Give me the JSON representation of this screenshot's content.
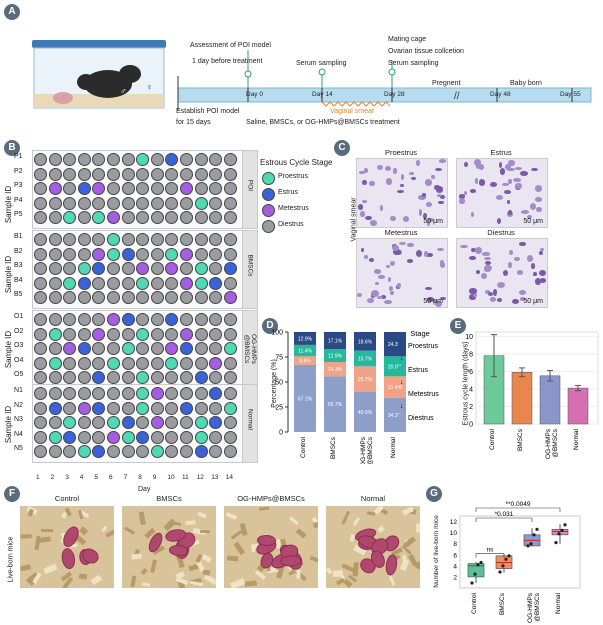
{
  "panelA": {
    "label": "A",
    "assessment": "Assessment of POI model",
    "assessment2": "1 day before treatment",
    "serum1": "Serum sampling",
    "mating": "Mating cage",
    "ovarian": "Ovarian tissue collcetion",
    "serum2": "Serum sampling",
    "pregnent": "Pregnent",
    "baby": "Baby born",
    "establish": "Establish POI model",
    "establish2": "for 15 days",
    "treatment": "Saline, BMSCs, or OG-HMPs@BMSCs treatment",
    "vaginal": "Vaginal smear",
    "day0": "Day 0",
    "day14": "Day 14",
    "day28": "Day 28",
    "day48": "Day 48",
    "day55": "Day 55"
  },
  "panelB": {
    "label": "B",
    "legendTitle": "Estrous Cycle Stage",
    "legend": [
      "Proestrus",
      "Estrus",
      "Metestrus",
      "Diestrus"
    ],
    "colors": {
      "P": "#4fd9b5",
      "E": "#3b63d9",
      "M": "#a55ee3",
      "D": "#9a9ca2"
    },
    "ylabel": "Sample ID",
    "xlabel": "Day",
    "days": [
      "1",
      "2",
      "3",
      "4",
      "5",
      "6",
      "7",
      "8",
      "9",
      "10",
      "11",
      "12",
      "13",
      "14"
    ],
    "groups": [
      {
        "name": "POI",
        "rows": [
          {
            "id": "P1",
            "seq": "DDDDDDDPDEDDDD"
          },
          {
            "id": "P2",
            "seq": "DDDDDDDDDDDDDD"
          },
          {
            "id": "P3",
            "seq": "DMDEMDDDDDMDDD"
          },
          {
            "id": "P4",
            "seq": "DDDDDDDDDDDPDD"
          },
          {
            "id": "P5",
            "seq": "DDPDPMDDDDDDDD"
          }
        ]
      },
      {
        "name": "BMSCs",
        "rows": [
          {
            "id": "B1",
            "seq": "DDDDDPDDDDDDDD"
          },
          {
            "id": "B2",
            "seq": "DDDDMPEDDPMDDD"
          },
          {
            "id": "B3",
            "seq": "DDDPEDDMDMDPDE"
          },
          {
            "id": "B4",
            "seq": "DDPEDDDPDDMPED"
          },
          {
            "id": "B5",
            "seq": "DDDDDDDDDDDDDM"
          }
        ]
      },
      {
        "name": "OG-HMPs\n@BMSCs",
        "rows": [
          {
            "id": "O1",
            "seq": "DDDDDMEDDEDDDD"
          },
          {
            "id": "O2",
            "seq": "DPDDMDDPDDMDDD"
          },
          {
            "id": "O3",
            "seq": "DDMEDDPDDMEDDP"
          },
          {
            "id": "O4",
            "seq": "DPDDDPDDDPDDMD"
          },
          {
            "id": "O5",
            "seq": "DDDDEDDPDDDEDD"
          }
        ]
      },
      {
        "name": "Normal",
        "rows": [
          {
            "id": "N1",
            "seq": "DDDDDDDPMDDDED"
          },
          {
            "id": "N2",
            "seq": "DEDMEDDPDDEDDP"
          },
          {
            "id": "N3",
            "seq": "DDPDDPEDMDDPED"
          },
          {
            "id": "N4",
            "seq": "DPEDDMPEDDDPDD"
          },
          {
            "id": "N5",
            "seq": "DDDPEDDDPDDEDD"
          }
        ]
      }
    ]
  },
  "panelC": {
    "label": "C",
    "side": "Vaginal smear",
    "titles": [
      "Proestrus",
      "Estrus",
      "Metestrus",
      "Diestrus"
    ],
    "scale": "50 μm"
  },
  "panelD": {
    "label": "D",
    "ylabel": "Percentage (%)",
    "stageTitle": "Stage",
    "yticks": [
      "0",
      "25",
      "50",
      "75",
      "100"
    ],
    "chart_data": {
      "type": "bar",
      "categories": [
        "Control",
        "BMSCs",
        "OG-HMPs\n@BMSCs",
        "Normal"
      ],
      "series": [
        {
          "name": "Diestrus",
          "values": [
            67.1,
            55.7,
            40.0,
            34.3
          ],
          "labels": [
            "67.1%",
            "55.7%",
            "40.0%",
            "34.3%"
          ],
          "color": "#8d9ec8"
        },
        {
          "name": "Metestrus",
          "values": [
            8.6,
            14.3,
            25.7,
            21.4
          ],
          "labels": [
            "8.6%",
            "14.3%",
            "25.7%",
            "21.4%"
          ],
          "color": "#f0a386"
        },
        {
          "name": "Estrus",
          "values": [
            11.4,
            12.9,
            15.7,
            20.0
          ],
          "labels": [
            "11.4%",
            "12.9%",
            "15.7%",
            "20.0%"
          ],
          "color": "#26b89c"
        },
        {
          "name": "Proestrus",
          "values": [
            12.9,
            17.1,
            18.6,
            24.3
          ],
          "labels": [
            "12.9%",
            "17.1%",
            "18.6%",
            "24.3%"
          ],
          "color": "#2a4a86"
        }
      ],
      "ylim": [
        0,
        100
      ]
    }
  },
  "panelE": {
    "label": "E",
    "ylabel": "Estrous cycle length (days)",
    "yticks": [
      "0",
      "2",
      "4",
      "6",
      "8",
      "10"
    ],
    "chart_data": {
      "type": "bar",
      "categories": [
        "Control",
        "BMSCs",
        "OG-HMPs\n@BMSCs",
        "Normal"
      ],
      "values": [
        7.8,
        5.9,
        5.5,
        4.1
      ],
      "err": [
        2.4,
        0.5,
        0.6,
        0.3
      ],
      "colors": [
        "#6bc99a",
        "#e8864e",
        "#8a96c9",
        "#d66fb1"
      ],
      "ylim": [
        0,
        10.5
      ]
    }
  },
  "panelF": {
    "label": "F",
    "side": "Live-born mice",
    "titles": [
      "Control",
      "BMSCs",
      "OG-HMPs@BMSCs",
      "Normal"
    ]
  },
  "panelG": {
    "label": "G",
    "ylabel": "Number of live-born mice",
    "yticks": [
      "2",
      "4",
      "6",
      "8",
      "10",
      "12"
    ],
    "sig1": "**0.0049",
    "sig2": "*0.031",
    "sig3": "ns",
    "chart_data": {
      "type": "box",
      "categories": [
        "Control",
        "BMSCs",
        "OG-HMPs\n@BMSCs",
        "Normal"
      ],
      "boxes": [
        {
          "q1": 2.0,
          "med": 4.0,
          "q3": 4.4,
          "lo": 0.9,
          "hi": 4.7,
          "pts": [
            0.9,
            2.5,
            4.2,
            4.6
          ]
        },
        {
          "q1": 3.5,
          "med": 4.6,
          "q3": 5.8,
          "lo": 2.8,
          "hi": 6.1,
          "pts": [
            2.9,
            4.0,
            5.2,
            5.8
          ]
        },
        {
          "q1": 7.6,
          "med": 8.6,
          "q3": 9.6,
          "lo": 7.5,
          "hi": 10.8,
          "pts": [
            7.6,
            8.0,
            9.6,
            10.6
          ]
        },
        {
          "q1": 9.6,
          "med": 10.2,
          "q3": 10.6,
          "lo": 8.0,
          "hi": 11.5,
          "pts": [
            8.2,
            9.8,
            10.4,
            11.4
          ]
        }
      ],
      "colors": [
        "#55c49a",
        "#ef9063",
        "#8c9ad3",
        "#e68bb8"
      ],
      "ylim": [
        0,
        13
      ]
    }
  }
}
